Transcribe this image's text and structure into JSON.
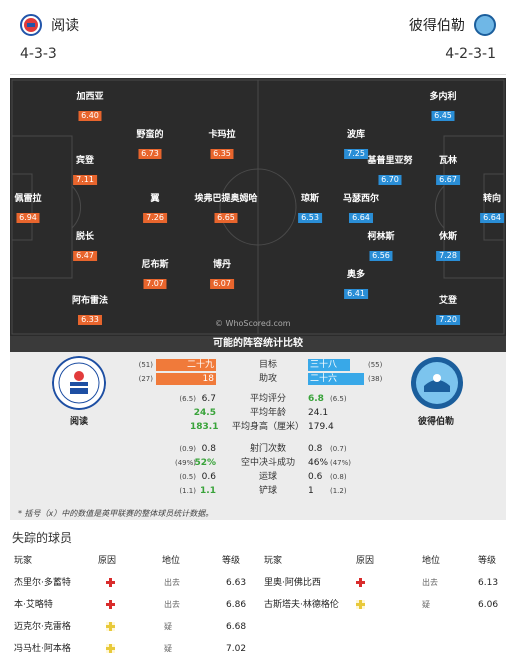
{
  "header": {
    "home": {
      "name": "阅读",
      "formation": "4-3-3"
    },
    "away": {
      "name": "彼得伯勒",
      "formation": "4-2-3-1"
    }
  },
  "pitch": {
    "credit": "© WhoScored.com",
    "home_players": [
      {
        "name": "加西亚",
        "rating": "6.40"
      },
      {
        "name": "野蛮的",
        "rating": "6.73"
      },
      {
        "name": "卡玛拉",
        "rating": "6.35"
      },
      {
        "name": "宾登",
        "rating": "7.11"
      },
      {
        "name": "佩雷拉",
        "rating": "6.94"
      },
      {
        "name": "翼",
        "rating": "7.26"
      },
      {
        "name": "埃弗巴提奥姆哈",
        "rating": "6.65"
      },
      {
        "name": "脱长",
        "rating": "6.47"
      },
      {
        "name": "尼布斯",
        "rating": "7.07"
      },
      {
        "name": "博丹",
        "rating": "6.07"
      },
      {
        "name": "阿布雷法",
        "rating": "6.33"
      }
    ],
    "away_players": [
      {
        "name": "多内利",
        "rating": "6.45"
      },
      {
        "name": "波库",
        "rating": "7.25"
      },
      {
        "name": "基普里亚努",
        "rating": "6.70"
      },
      {
        "name": "瓦林",
        "rating": "6.67"
      },
      {
        "name": "琼斯",
        "rating": "6.53"
      },
      {
        "name": "马瑟西尔",
        "rating": "6.64"
      },
      {
        "name": "转向",
        "rating": "6.64"
      },
      {
        "name": "柯林斯",
        "rating": "6.56"
      },
      {
        "name": "休斯",
        "rating": "7.28"
      },
      {
        "name": "奥多",
        "rating": "6.41"
      },
      {
        "name": "艾登",
        "rating": "7.20"
      }
    ]
  },
  "stats": {
    "title": "可能的阵容统计比较",
    "home_crest_name": "阅读",
    "away_crest_name": "彼得伯勒",
    "bars": [
      {
        "label": "目标",
        "home_avg": "(51)",
        "home_val": "二十九",
        "away_val": "三十八",
        "away_avg": "(55)"
      },
      {
        "label": "助攻",
        "home_avg": "(27)",
        "home_val": "18",
        "away_val": "二十六",
        "away_avg": "(38)"
      }
    ],
    "rows1": [
      {
        "label": "平均评分",
        "home_avg": "(6.5)",
        "home_val": "6.7",
        "away_val": "6.8",
        "away_avg": "(6.5)",
        "home_green": false,
        "away_green": true
      },
      {
        "label": "平均年龄",
        "home_avg": "",
        "home_val": "24.5",
        "away_val": "24.1",
        "away_avg": "",
        "home_green": true,
        "away_green": false
      },
      {
        "label": "平均身高（厘米）",
        "home_avg": "",
        "home_val": "183.1",
        "away_val": "179.4",
        "away_avg": "",
        "home_green": true,
        "away_green": false
      }
    ],
    "rows2": [
      {
        "label": "射门次数",
        "home_avg": "(0.9)",
        "home_val": "0.8",
        "away_val": "0.8",
        "away_avg": "(0.7)",
        "home_green": false,
        "away_green": false
      },
      {
        "label": "空中决斗成功",
        "home_avg": "(49%)",
        "home_val": "52%",
        "away_val": "46%",
        "away_avg": "(47%)",
        "home_green": true,
        "away_green": false
      },
      {
        "label": "运球",
        "home_avg": "(0.5)",
        "home_val": "0.6",
        "away_val": "0.6",
        "away_avg": "(0.8)",
        "home_green": false,
        "away_green": false
      },
      {
        "label": "铲球",
        "home_avg": "(1.1)",
        "home_val": "1.1",
        "away_val": "1",
        "away_avg": "(1.2)",
        "home_green": true,
        "away_green": false
      }
    ],
    "footnote": "* 括号（x）中的数值是英甲联赛的整体球员统计数据。"
  },
  "missing": {
    "title": "失踪的球员",
    "headers": {
      "player": "玩家",
      "reason": "原因",
      "status": "地位",
      "rating": "等级"
    },
    "left": [
      {
        "name": "杰里尔·多蓄特",
        "icon": "red",
        "status": "出去",
        "rating": "6.63"
      },
      {
        "name": "本·艾略特",
        "icon": "red",
        "status": "出去",
        "rating": "6.86"
      },
      {
        "name": "迈克尔·克雷格",
        "icon": "yel",
        "status": "疑",
        "rating": "6.68"
      },
      {
        "name": "冯马杜·阿本格",
        "icon": "yel",
        "status": "疑",
        "rating": "7.02"
      }
    ],
    "right": [
      {
        "name": "里奥·阿佛比西",
        "icon": "red",
        "status": "出去",
        "rating": "6.13"
      },
      {
        "name": "古斯塔夫·林德格伦",
        "icon": "yel",
        "status": "疑",
        "rating": "6.06"
      }
    ]
  },
  "colors": {
    "home": "#e8652d",
    "away": "#2a8ed6",
    "good": "#39a33a"
  }
}
